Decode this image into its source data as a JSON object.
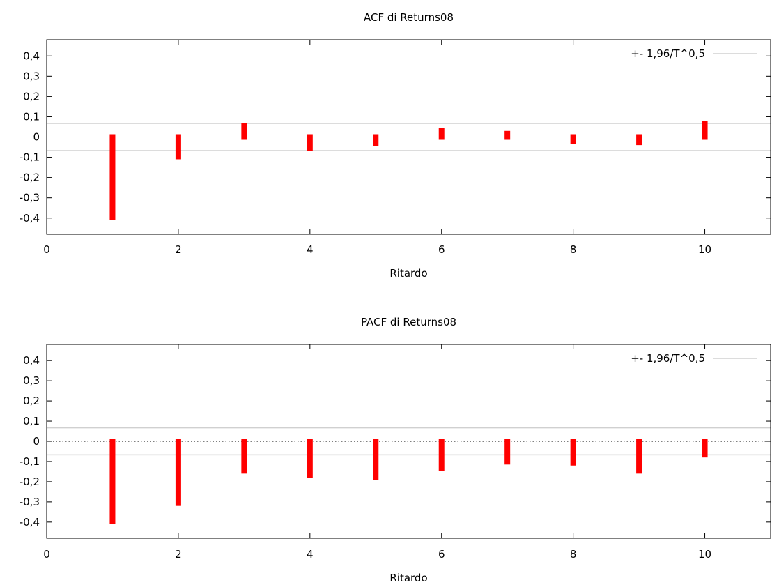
{
  "chart_data": [
    {
      "type": "bar",
      "title": "ACF di Returns08",
      "xlabel": "Ritardo",
      "ylabel": "",
      "xlim": [
        0,
        11
      ],
      "ylim": [
        -0.48,
        0.48
      ],
      "x": [
        1,
        2,
        3,
        4,
        5,
        6,
        7,
        8,
        9,
        10
      ],
      "values": [
        -0.41,
        -0.11,
        0.07,
        -0.07,
        -0.045,
        0.045,
        0.03,
        -0.035,
        -0.04,
        0.08
      ],
      "x_ticks": [
        0,
        2,
        4,
        6,
        8,
        10
      ],
      "y_ticks": [
        0.4,
        0.3,
        0.2,
        0.1,
        0,
        -0.1,
        -0.2,
        -0.3,
        -0.4
      ],
      "x_tick_labels": [
        "0",
        "2",
        "4",
        "6",
        "8",
        "10"
      ],
      "y_tick_labels": [
        "0,4",
        "0,3",
        "0,2",
        "0,1",
        "0",
        "-0,1",
        "-0,2",
        "-0,3",
        "-0,4"
      ],
      "confidence_band": 0.067,
      "legend_label": "+- 1,96/T^0,5",
      "legend_position": "top-right",
      "bar_color": "#ff0000",
      "band_color": "#d0d0d0",
      "grid": false
    },
    {
      "type": "bar",
      "title": "PACF di Returns08",
      "xlabel": "Ritardo",
      "ylabel": "",
      "xlim": [
        0,
        11
      ],
      "ylim": [
        -0.48,
        0.48
      ],
      "x": [
        1,
        2,
        3,
        4,
        5,
        6,
        7,
        8,
        9,
        10
      ],
      "values": [
        -0.41,
        -0.32,
        -0.16,
        -0.18,
        -0.19,
        -0.145,
        -0.115,
        -0.12,
        -0.16,
        -0.08
      ],
      "x_ticks": [
        0,
        2,
        4,
        6,
        8,
        10
      ],
      "y_ticks": [
        0.4,
        0.3,
        0.2,
        0.1,
        0,
        -0.1,
        -0.2,
        -0.3,
        -0.4
      ],
      "x_tick_labels": [
        "0",
        "2",
        "4",
        "6",
        "8",
        "10"
      ],
      "y_tick_labels": [
        "0,4",
        "0,3",
        "0,2",
        "0,1",
        "0",
        "-0,1",
        "-0,2",
        "-0,3",
        "-0,4"
      ],
      "confidence_band": 0.067,
      "legend_label": "+- 1,96/T^0,5",
      "legend_position": "top-right",
      "bar_color": "#ff0000",
      "band_color": "#d0d0d0",
      "grid": false
    }
  ]
}
